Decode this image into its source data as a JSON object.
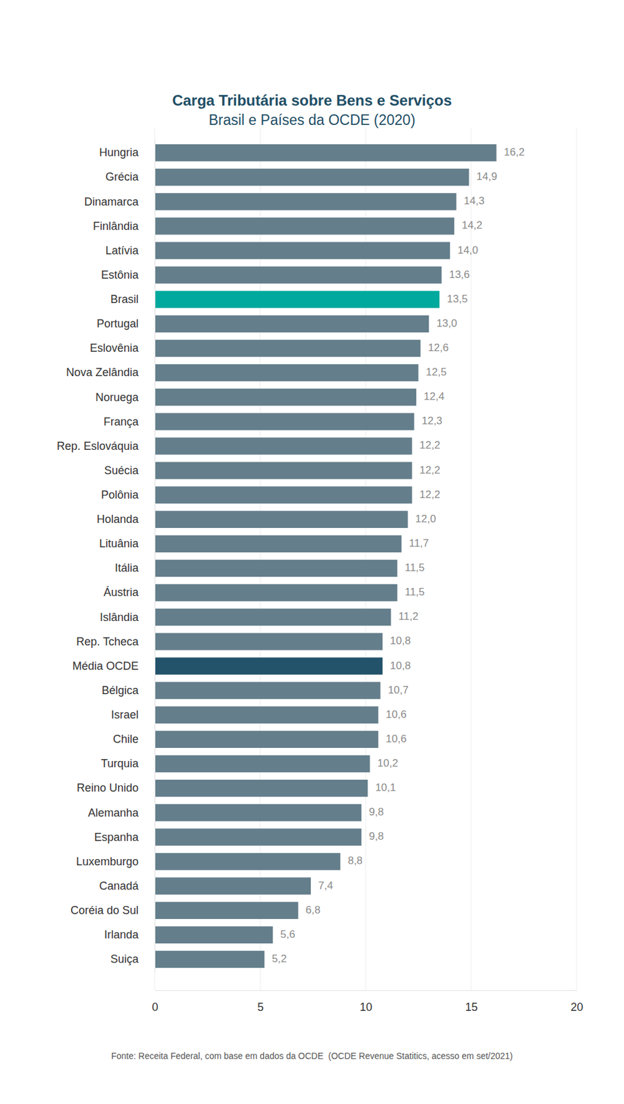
{
  "chart_data": {
    "type": "bar",
    "orientation": "horizontal",
    "title": "Carga Tributária sobre Bens e Serviços",
    "subtitle": "Brasil e Países da OCDE (2020)",
    "source": "Fonte: Receita Federal, com base em dados da OCDE  (OCDE Revenue Statitics, acesso em set/2021)",
    "categories": [
      "Hungria",
      "Grécia",
      "Dinamarca",
      "Finlândia",
      "Latívia",
      "Estônia",
      "Brasil",
      "Portugal",
      "Eslovênia",
      "Nova Zelândia",
      "Noruega",
      "França",
      "Rep. Eslováquia",
      "Suécia",
      "Polônia",
      "Holanda",
      "Lituânia",
      "Itália",
      "Áustria",
      "Islândia",
      "Rep. Tcheca",
      "Média OCDE",
      "Bélgica",
      "Israel",
      "Chile",
      "Turquia",
      "Reino Unido",
      "Alemanha",
      "Espanha",
      "Luxemburgo",
      "Canadá",
      "Coréia do Sul",
      "Irlanda",
      "Suiça"
    ],
    "values": [
      16.2,
      14.9,
      14.3,
      14.2,
      14.0,
      13.6,
      13.5,
      13.0,
      12.6,
      12.5,
      12.4,
      12.3,
      12.2,
      12.2,
      12.2,
      12.0,
      11.7,
      11.5,
      11.5,
      11.2,
      10.8,
      10.8,
      10.7,
      10.6,
      10.6,
      10.2,
      10.1,
      9.8,
      9.8,
      8.8,
      7.4,
      6.8,
      5.6,
      5.2
    ],
    "value_labels": [
      "16,2",
      "14,9",
      "14,3",
      "14,2",
      "14,0",
      "13,6",
      "13,5",
      "13,0",
      "12,6",
      "12,5",
      "12,4",
      "12,3",
      "12,2",
      "12,2",
      "12,2",
      "12,0",
      "11,7",
      "11,5",
      "11,5",
      "11,2",
      "10,8",
      "10,8",
      "10,7",
      "10,6",
      "10,6",
      "10,2",
      "10,1",
      "9,8",
      "9,8",
      "8,8",
      "7,4",
      "6,8",
      "5,6",
      "5,2"
    ],
    "colors": [
      "#647e8b",
      "#647e8b",
      "#647e8b",
      "#647e8b",
      "#647e8b",
      "#647e8b",
      "#00a99d",
      "#647e8b",
      "#647e8b",
      "#647e8b",
      "#647e8b",
      "#647e8b",
      "#647e8b",
      "#647e8b",
      "#647e8b",
      "#647e8b",
      "#647e8b",
      "#647e8b",
      "#647e8b",
      "#647e8b",
      "#647e8b",
      "#23536b",
      "#647e8b",
      "#647e8b",
      "#647e8b",
      "#647e8b",
      "#647e8b",
      "#647e8b",
      "#647e8b",
      "#647e8b",
      "#647e8b",
      "#647e8b",
      "#647e8b",
      "#647e8b"
    ],
    "xlim": [
      0,
      20
    ],
    "xticks": [
      0,
      5,
      10,
      15,
      20
    ],
    "grid": true,
    "data_labels": true
  }
}
